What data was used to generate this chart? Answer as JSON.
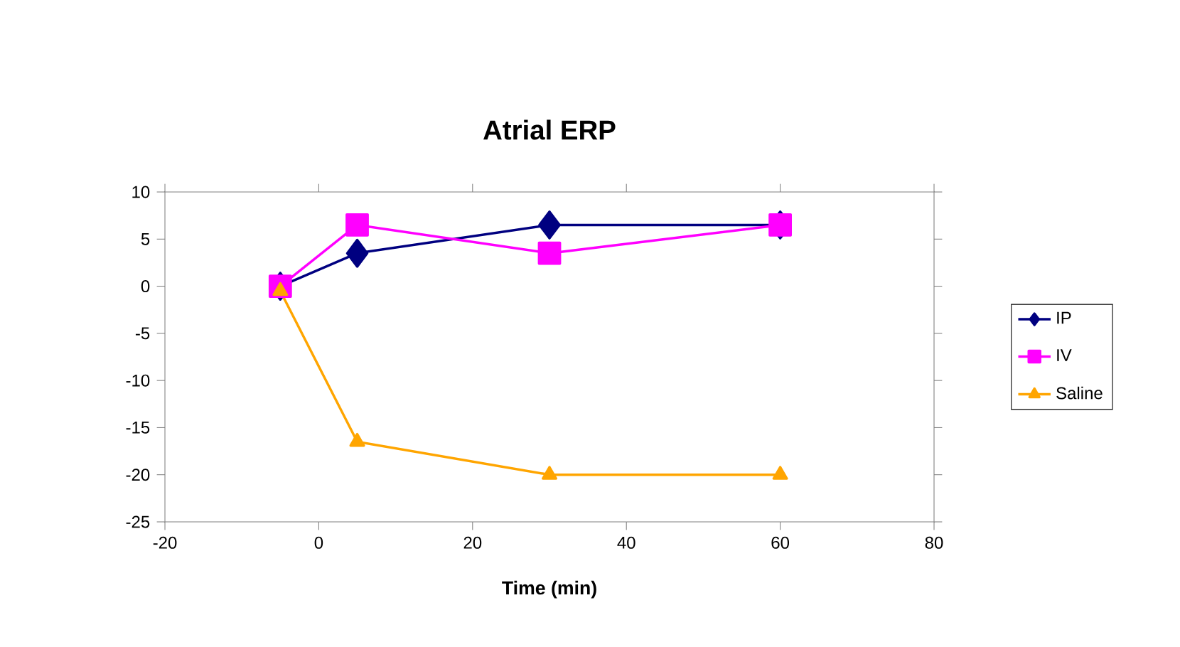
{
  "chart_data": {
    "type": "line",
    "title": "Atrial ERP",
    "xlabel": "Time (min)",
    "x": [
      -5,
      5,
      30,
      60
    ],
    "series": [
      {
        "name": "IP",
        "color": "#000080",
        "marker": "diamond",
        "values": [
          0,
          3.5,
          6.5,
          6.5
        ]
      },
      {
        "name": "IV",
        "color": "#ff00ff",
        "marker": "square",
        "values": [
          0,
          6.5,
          3.5,
          6.5
        ]
      },
      {
        "name": "Saline",
        "color": "#ffa500",
        "marker": "triangle",
        "values": [
          -0.5,
          -16.5,
          -20,
          -20
        ]
      }
    ],
    "xlim": [
      -20,
      80
    ],
    "xticks": [
      -20,
      0,
      20,
      40,
      60,
      80
    ],
    "ylim": [
      -25,
      10
    ],
    "yticks": [
      -25,
      -20,
      -15,
      -10,
      -5,
      0,
      5,
      10
    ],
    "grid": false,
    "legend": "right",
    "line_style": "solid"
  }
}
